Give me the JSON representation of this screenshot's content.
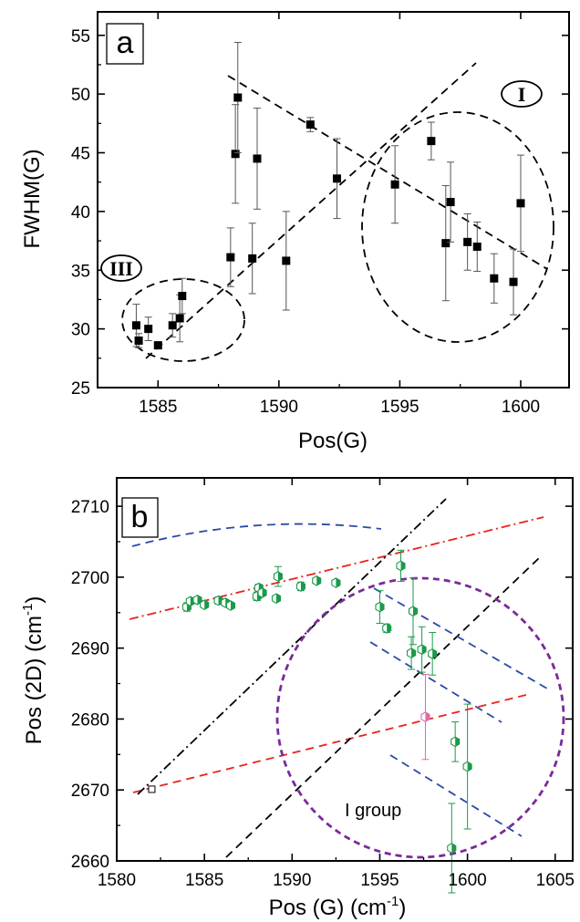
{
  "colors": {
    "axis": "#000000",
    "markerA": "#000000",
    "greenMarker": "#1a9a4a",
    "pinkMarker": "#e06aa8",
    "red": "#e8231b",
    "blue": "#2a4aa8",
    "purple": "#7a2a9a",
    "black": "#000000"
  },
  "chart_data": [
    {
      "panel_label": "a",
      "type": "scatter",
      "title": "",
      "xlabel": "Pos(G)",
      "ylabel": "FWHM(G)",
      "xlim": [
        1582.5,
        1602
      ],
      "ylim": [
        25,
        57
      ],
      "xticks": [
        1585,
        1590,
        1595,
        1600
      ],
      "yticks": [
        25,
        30,
        35,
        40,
        45,
        50,
        55
      ],
      "grid": false,
      "series": [
        {
          "marker": "filled-square",
          "x": [
            1584.1,
            1584.2,
            1584.6,
            1585.0,
            1585.6,
            1585.9,
            1586.0,
            1588.0,
            1588.2,
            1588.3,
            1588.9,
            1589.1,
            1590.3,
            1591.3,
            1592.4,
            1594.8,
            1596.3,
            1596.9,
            1597.1,
            1597.8,
            1598.2,
            1598.9,
            1599.7,
            1600.0
          ],
          "y": [
            30.3,
            29.0,
            30.0,
            28.6,
            30.3,
            30.9,
            32.8,
            36.1,
            44.9,
            49.7,
            36.0,
            44.5,
            35.8,
            47.4,
            42.8,
            42.3,
            46.0,
            37.3,
            40.8,
            37.4,
            37.0,
            34.3,
            34.0,
            40.7
          ],
          "err": [
            1.8,
            0.6,
            1.0,
            0.3,
            1.0,
            2.0,
            1.5,
            2.5,
            4.2,
            4.7,
            3.0,
            4.3,
            4.2,
            0.6,
            3.4,
            3.3,
            1.6,
            4.9,
            3.4,
            2.4,
            2.1,
            2.1,
            2.8,
            4.1
          ]
        }
      ],
      "annotations": [
        {
          "text": "I",
          "x": 1598.7,
          "y": 52.2
        },
        {
          "text": "III",
          "x": 1583.5,
          "y": 35.8
        }
      ]
    },
    {
      "panel_label": "b",
      "type": "scatter",
      "title": "",
      "xlabel": "Pos (G) (cm",
      "xlabel_sup": "-1",
      "xlabel_end": ")",
      "ylabel": "Pos (2D) (cm",
      "ylabel_sup": "-1",
      "ylabel_end": ")",
      "xlim": [
        1580,
        1606
      ],
      "ylim": [
        2660,
        2714
      ],
      "xticks": [
        1580,
        1585,
        1590,
        1595,
        1600,
        1605
      ],
      "yticks": [
        2660,
        2670,
        2680,
        2690,
        2700,
        2710
      ],
      "grid": false,
      "series": [
        {
          "marker": "green-hexagon",
          "x": [
            1584.0,
            1584.2,
            1584.6,
            1585.0,
            1585.8,
            1586.2,
            1586.5,
            1588.0,
            1588.1,
            1588.3,
            1589.1,
            1589.2,
            1590.5,
            1591.4,
            1592.5,
            1595.0,
            1595.4,
            1596.2,
            1596.8,
            1596.9,
            1597.4,
            1598.0,
            1599.3,
            1599.1,
            1600.0
          ],
          "y": [
            2695.8,
            2696.6,
            2696.8,
            2696.1,
            2696.7,
            2696.4,
            2696.0,
            2697.3,
            2698.5,
            2697.8,
            2697.0,
            2700.1,
            2698.7,
            2699.5,
            2699.2,
            2695.8,
            2692.8,
            2701.6,
            2689.3,
            2695.2,
            2689.8,
            2689.2,
            2676.8,
            2661.8,
            2673.3
          ],
          "err": [
            0.6,
            0.3,
            0.3,
            0.3,
            0.5,
            0.3,
            0.4,
            0.6,
            0.5,
            0.4,
            0.3,
            1.4,
            0.6,
            0.4,
            0.3,
            2.3,
            0.6,
            2.2,
            2.3,
            4.7,
            3.2,
            3.0,
            2.8,
            6.3,
            8.8
          ]
        },
        {
          "marker": "pink-hexagon",
          "x": [
            1597.6
          ],
          "y": [
            2680.3
          ],
          "err": [
            6.0
          ]
        },
        {
          "marker": "open-square",
          "x": [
            1582.0
          ],
          "y": [
            2670.1
          ],
          "err": [
            0
          ]
        }
      ],
      "annotations": [
        {
          "text": "I group",
          "x": 1593.3,
          "y": 2667.0
        }
      ]
    }
  ]
}
